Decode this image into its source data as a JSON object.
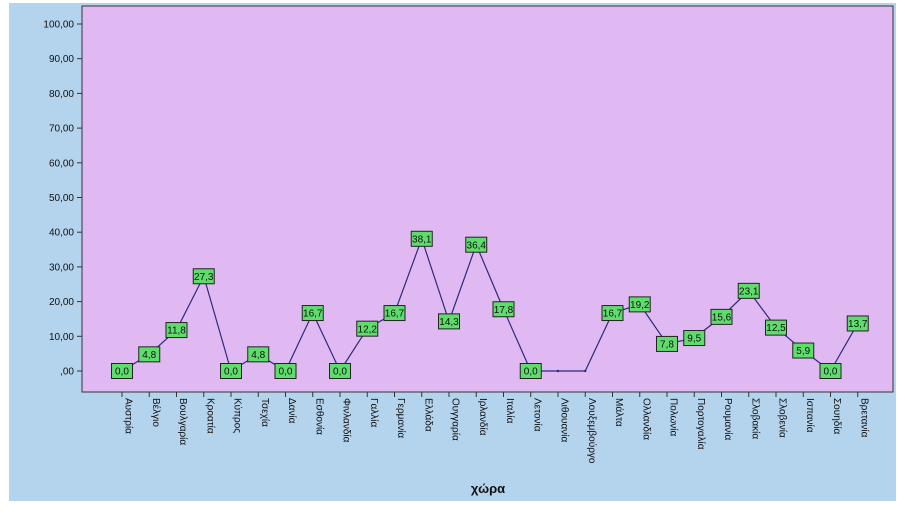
{
  "colors": {
    "frame_background": "#b4d3ec",
    "plot_background": "#e0b8f2",
    "plot_border": "#333333",
    "line": "#2b2b7a",
    "label_fill": "#5edc6c",
    "label_border": "#222222"
  },
  "chart_data": {
    "type": "line",
    "title": "",
    "xlabel": "χώρα",
    "ylabel": "",
    "ylim": [
      0,
      100
    ],
    "grid": false,
    "y_ticks": [
      ",00",
      "10,00",
      "20,00",
      "30,00",
      "40,00",
      "50,00",
      "60,00",
      "70,00",
      "80,00",
      "90,00",
      "100,00"
    ],
    "y_tick_values": [
      0,
      10,
      20,
      30,
      40,
      50,
      60,
      70,
      80,
      90,
      100
    ],
    "categories": [
      "Αυστρία",
      "Βέλγιο",
      "Βουλγαρία",
      "Κροατία",
      "Κύπρος",
      "Τσεχία",
      "Δανία",
      "Εσθονία",
      "Φινλανδία",
      "Γαλλία",
      "Γερμανία",
      "Ελλάδα",
      "Ουγγαρία",
      "Ιρλανδία",
      "Ιταλία",
      "Λετονία",
      "Λιθουανία",
      "Λουξεμβούργο",
      "Μάλτα",
      "Ολλανδία",
      "Πολωνία",
      "Πορτογαλία",
      "Ρουμανία",
      "Σλοβακία",
      "Σλοβενία",
      "Ισπανία",
      "Σουηδία",
      "Βρετανία"
    ],
    "values": [
      0.0,
      4.8,
      11.8,
      27.3,
      0.0,
      4.8,
      0.0,
      16.7,
      0.0,
      12.2,
      16.7,
      38.1,
      14.3,
      36.4,
      17.8,
      0.0,
      0.0,
      0.0,
      16.7,
      19.2,
      7.8,
      9.5,
      15.6,
      23.1,
      12.5,
      5.9,
      0.0,
      13.7
    ],
    "data_labels": [
      "0,0",
      "4,8",
      "11,8",
      "27,3",
      "0,0",
      "4,8",
      "0,0",
      "16,7",
      "0,0",
      "12,2",
      "16,7",
      "38,1",
      "14,3",
      "36,4",
      "17,8",
      "0,0",
      null,
      null,
      "16,7",
      "19,2",
      "7,8",
      "9,5",
      "15,6",
      "23,1",
      "12,5",
      "5,9",
      "0,0",
      "13,7"
    ]
  }
}
